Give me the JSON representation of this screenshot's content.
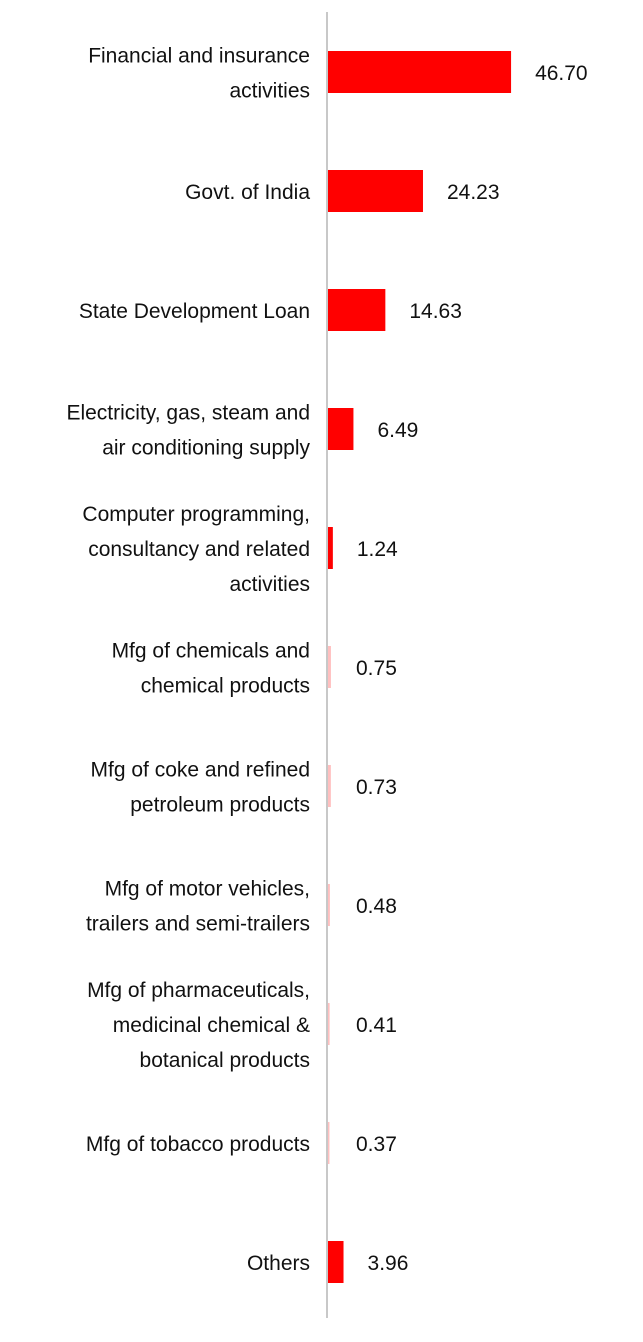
{
  "chart_data": {
    "type": "bar",
    "orientation": "horizontal",
    "categories": [
      [
        "Financial and insurance",
        "activities"
      ],
      [
        "Govt. of India"
      ],
      [
        "State Development Loan"
      ],
      [
        "Electricity, gas, steam and",
        "air conditioning supply"
      ],
      [
        "Computer programming,",
        "consultancy and related",
        "activities"
      ],
      [
        "Mfg of chemicals and",
        "chemical products"
      ],
      [
        "Mfg of coke and refined",
        "petroleum products"
      ],
      [
        "Mfg of motor vehicles,",
        "trailers and semi-trailers"
      ],
      [
        "Mfg of pharmaceuticals,",
        "medicinal chemical &",
        "botanical products"
      ],
      [
        "Mfg of tobacco products"
      ],
      [
        "Others"
      ]
    ],
    "values": [
      46.7,
      24.23,
      14.63,
      6.49,
      1.24,
      0.75,
      0.73,
      0.48,
      0.41,
      0.37,
      3.96
    ],
    "value_labels": [
      "46.70",
      "24.23",
      "14.63",
      "6.49",
      "1.24",
      "0.75",
      "0.73",
      "0.48",
      "0.41",
      "0.37",
      "3.96"
    ],
    "bar_color": "#ff0000",
    "axis_color": "#c8c8c8",
    "title": "",
    "xlabel": "",
    "ylabel": "",
    "grid": false,
    "legend": "none"
  }
}
